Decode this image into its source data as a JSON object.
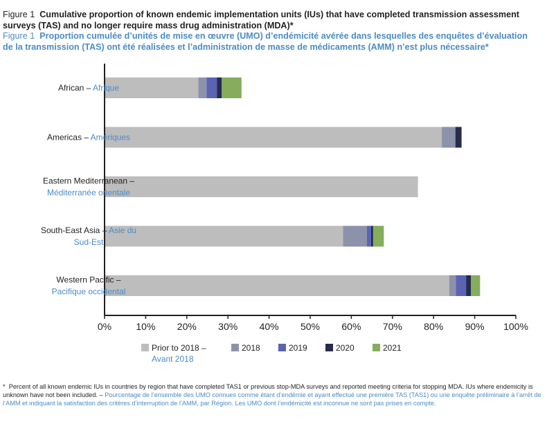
{
  "title": {
    "en_prefix": "Figure 1",
    "en_line1": "Cumulative proportion of known endemic implementation units (IUs) that have completed transmission assessment",
    "en_line2": "surveys (TAS) and no longer require mass drug administration (MDA)*",
    "fr_prefix": "Figure 1",
    "fr_line1": "Proportion cumulée d’unités de mise en œuvre (UMO) d’endémicité avérée dans lesquelles des enquêtes d’évaluation",
    "fr_line2": "de la transmission (TAS) ont été réalisées et l’administration de masse de médicaments (AMM) n’est plus nécessaire*"
  },
  "chart_data": {
    "type": "bar",
    "orientation": "horizontal",
    "stacked": true,
    "xlim": [
      0,
      100
    ],
    "x_ticks": [
      "0%",
      "10%",
      "20%",
      "30%",
      "40%",
      "50%",
      "60%",
      "70%",
      "80%",
      "90%",
      "100%"
    ],
    "grid": false,
    "legend_position": "bottom",
    "categories": [
      {
        "en": "African",
        "fr": "Afrique"
      },
      {
        "en": "Americas",
        "fr": "Amériques"
      },
      {
        "en": "Eastern Mediterranean",
        "fr": "Méditerranée orientale"
      },
      {
        "en": "South-East Asia",
        "fr": "Asie du Sud-Est"
      },
      {
        "en": "Western Pacific",
        "fr": "Pacifique occidental"
      }
    ],
    "series": [
      {
        "name": "Prior to 2018",
        "name_fr": "Avant 2018",
        "color": "#bdbdbd",
        "values": [
          22.8,
          82.0,
          76.2,
          58.0,
          83.8
        ]
      },
      {
        "name": "2018",
        "color": "#8d92ab",
        "values": [
          2.0,
          3.3,
          0,
          5.8,
          1.6
        ]
      },
      {
        "name": "2019",
        "color": "#5a64b3",
        "values": [
          2.5,
          0,
          0,
          1.0,
          2.5
        ]
      },
      {
        "name": "2020",
        "color": "#272b4d",
        "values": [
          1.2,
          1.5,
          0,
          0.5,
          1.2
        ]
      },
      {
        "name": "2021",
        "color": "#85ad5c",
        "values": [
          4.8,
          0,
          0,
          2.6,
          2.2
        ]
      }
    ]
  },
  "footnote": {
    "en": "Percent of all known endemic IUs in countries by region that have completed TAS1 or previous stop-MDA surveys and reported meeting criteria for stopping MDA. IUs where endemicity is unknown have not been included. –",
    "fr": "Pourcentage de l’ensemble des UMO connues comme étant d’endémie et ayant effectué une première TAS (TAS1) ou une enquête préliminaire à l’arrêt de l’AMM et indiquant la satisfaction des critères d’interruption de l’AMM, par Région. Les UMO dont l’endémicité est inconnue ne sont pas prises en compte."
  }
}
